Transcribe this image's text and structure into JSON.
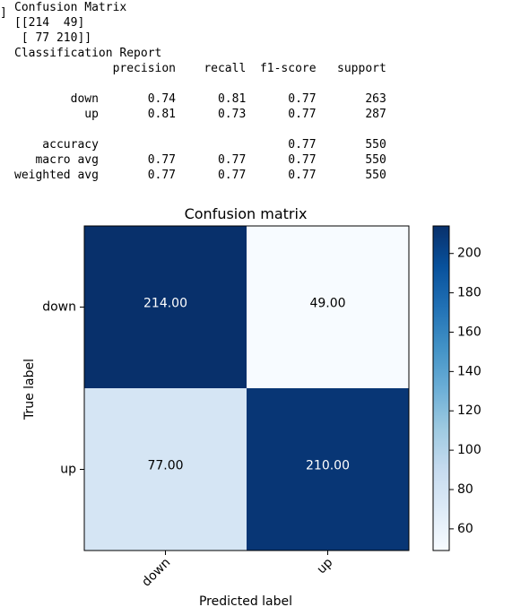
{
  "prompt_marker": "]",
  "stdout": {
    "lines": [
      "Confusion Matrix",
      "[[214  49]",
      " [ 77 210]]",
      "Classification Report",
      "              precision    recall  f1-score   support",
      "",
      "        down       0.74      0.81      0.77       263",
      "          up       0.81      0.73      0.77       287",
      "",
      "    accuracy                           0.77       550",
      "   macro avg       0.77      0.77      0.77       550",
      "weighted avg       0.77      0.77      0.77       550"
    ]
  },
  "chart_data": {
    "type": "heatmap",
    "title": "Confusion matrix",
    "xlabel": "Predicted label",
    "ylabel": "True label",
    "x_categories": [
      "down",
      "up"
    ],
    "y_categories": [
      "down",
      "up"
    ],
    "values": [
      [
        214,
        49
      ],
      [
        77,
        210
      ]
    ],
    "cell_labels": [
      [
        "214.00",
        "49.00"
      ],
      [
        "77.00",
        "210.00"
      ]
    ],
    "colormap": "Blues",
    "color_range": [
      49,
      214
    ],
    "colorbar_ticks": [
      60,
      80,
      100,
      120,
      140,
      160,
      180,
      200
    ],
    "colorbar_tick_labels": [
      "60",
      "80",
      "100",
      "120",
      "140",
      "160",
      "180",
      "200"
    ],
    "x_tick_rotation_deg": 45
  }
}
